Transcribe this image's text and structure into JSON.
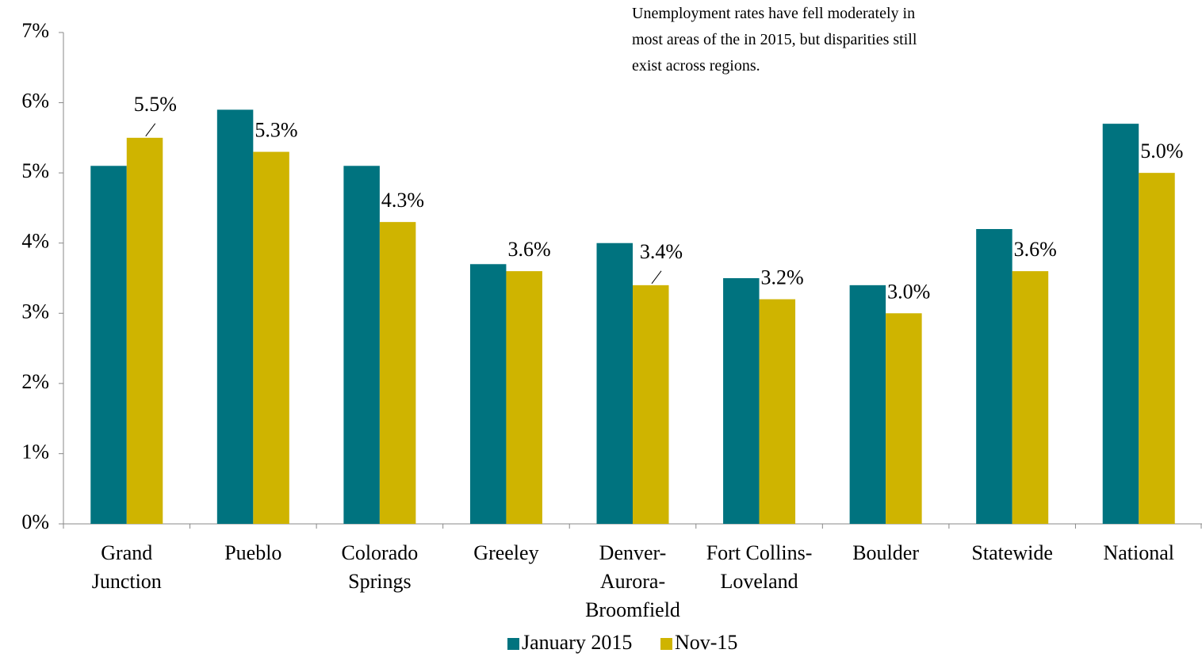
{
  "chart_data": {
    "type": "bar",
    "annotation": [
      "Unemployment rates have fell moderately in",
      "most areas of the in 2015, but disparities still",
      "exist across regions."
    ],
    "categories": [
      "Grand\nJunction",
      "Pueblo",
      "Colorado\nSprings",
      "Greeley",
      "Denver-\nAurora-\nBroomfield",
      "Fort Collins-\nLoveland",
      "Boulder",
      "Statewide",
      "National"
    ],
    "series": [
      {
        "name": "January 2015",
        "color": "#00737f",
        "values": [
          5.1,
          5.9,
          5.1,
          3.7,
          4.0,
          3.5,
          3.4,
          4.2,
          5.7
        ]
      },
      {
        "name": "Nov-15",
        "color": "#cfb400",
        "values": [
          5.5,
          5.3,
          4.3,
          3.6,
          3.4,
          3.2,
          3.0,
          3.6,
          5.0
        ],
        "value_labels": [
          "5.5%",
          "5.3%",
          "4.3%",
          "3.6%",
          "3.4%",
          "3.2%",
          "3.0%",
          "3.6%",
          "5.0%"
        ]
      }
    ],
    "ylim": [
      0,
      7
    ],
    "yticks": [
      {
        "value": 0,
        "label": "0%"
      },
      {
        "value": 1,
        "label": "1%"
      },
      {
        "value": 2,
        "label": "2%"
      },
      {
        "value": 3,
        "label": "3%"
      },
      {
        "value": 4,
        "label": "4%"
      },
      {
        "value": 5,
        "label": "5%"
      },
      {
        "value": 6,
        "label": "6%"
      },
      {
        "value": 7,
        "label": "7%"
      }
    ],
    "grid": false,
    "legend": "bottom"
  }
}
